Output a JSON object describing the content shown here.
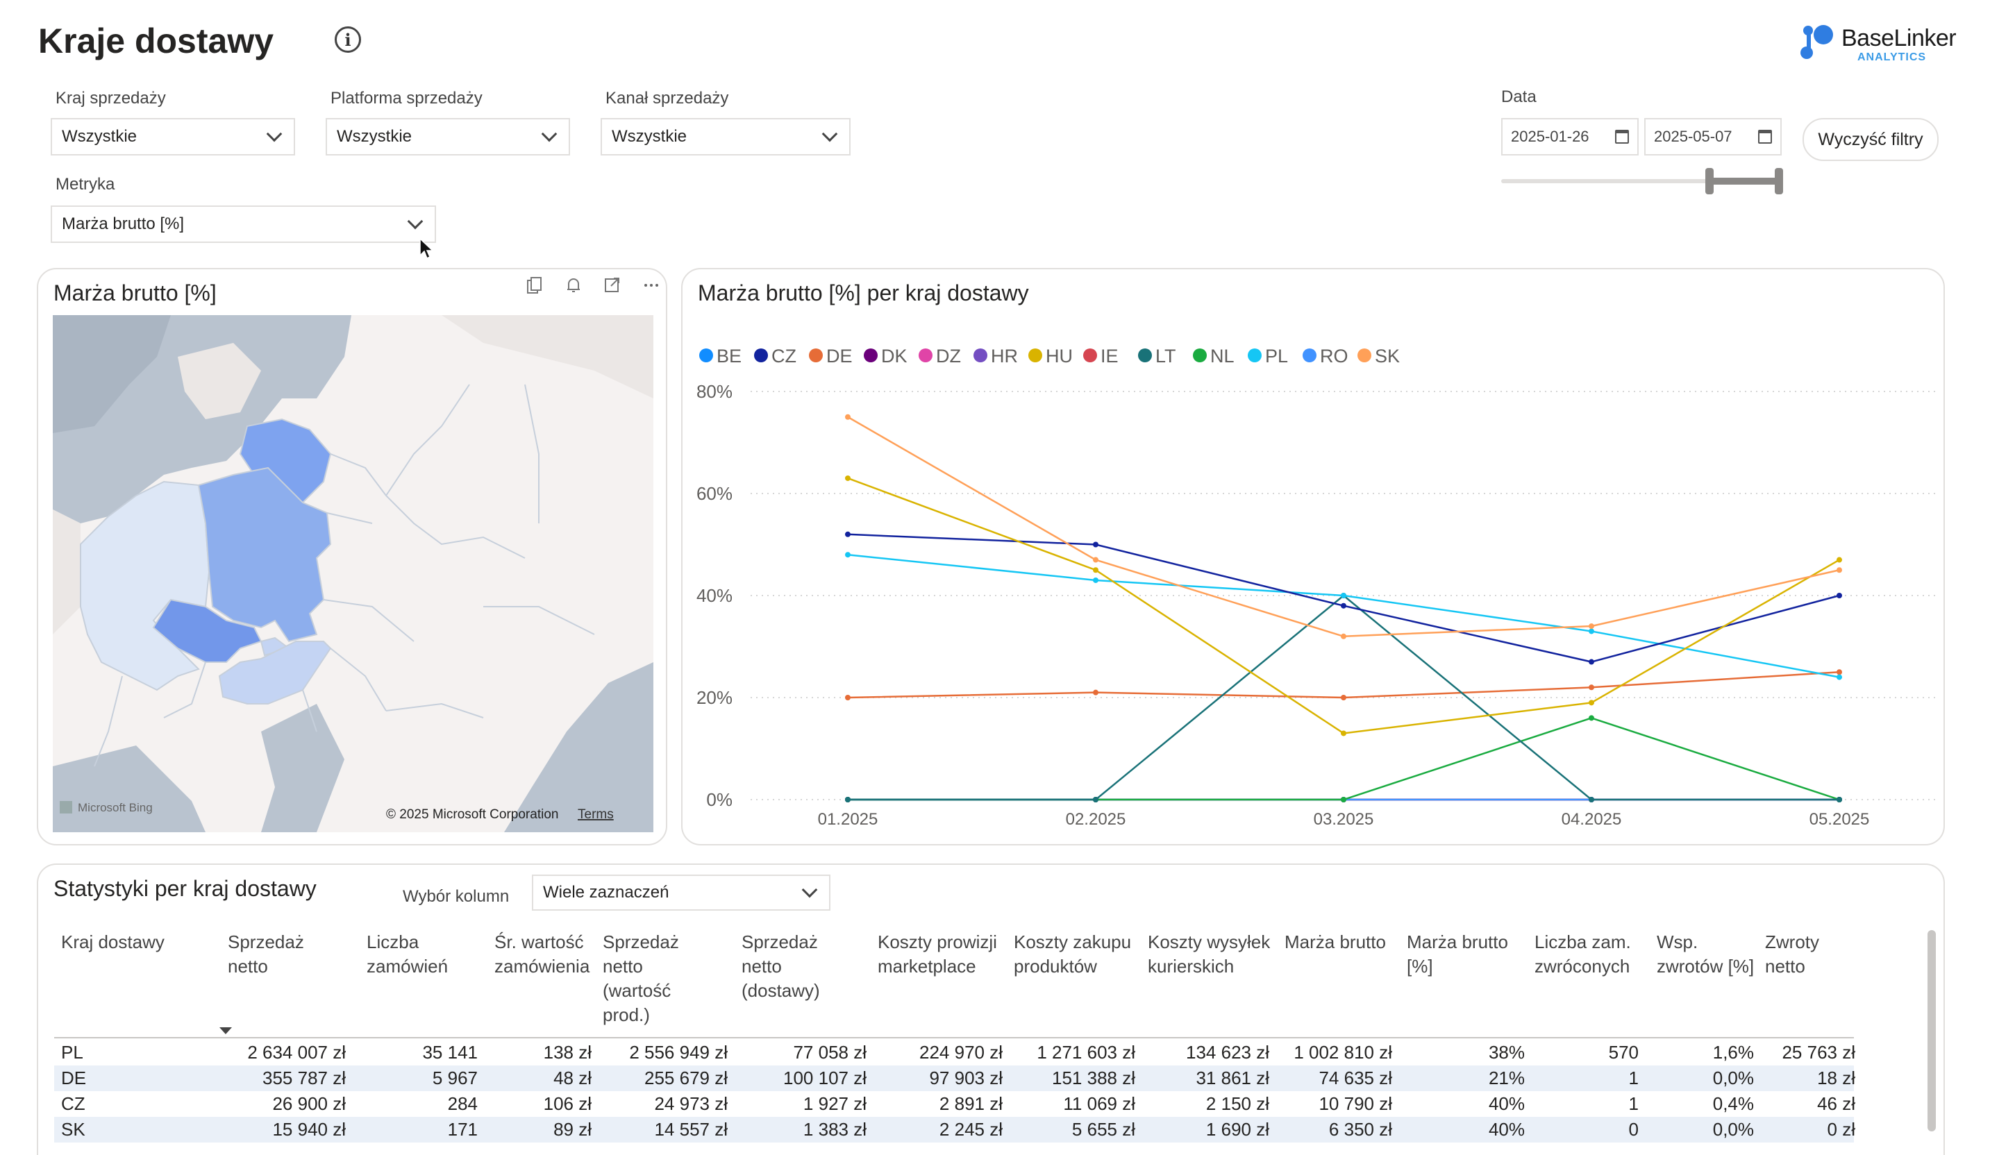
{
  "header": {
    "title": "Kraje dostawy",
    "logo_text": "BaseLinker",
    "logo_sub": "ANALYTICS"
  },
  "filters": {
    "country": {
      "label": "Kraj sprzedaży",
      "value": "Wszystkie"
    },
    "platform": {
      "label": "Platforma sprzedaży",
      "value": "Wszystkie"
    },
    "channel": {
      "label": "Kanał sprzedaży",
      "value": "Wszystkie"
    },
    "metric": {
      "label": "Metryka",
      "value": "Marża brutto [%]"
    },
    "date": {
      "label": "Data",
      "from": "2025-01-26",
      "to": "2025-05-07"
    },
    "clear_label": "Wyczyść filtry"
  },
  "map_card": {
    "title": "Marża brutto [%]",
    "bing_label": "Microsoft Bing",
    "copyright": "© 2025 Microsoft Corporation",
    "terms": "Terms"
  },
  "chart_card": {
    "title": "Marża brutto [%] per kraj dostawy"
  },
  "chart_data": {
    "type": "line",
    "x": [
      "01.2025",
      "02.2025",
      "03.2025",
      "04.2025",
      "05.2025"
    ],
    "ylim": [
      0,
      80
    ],
    "yticks": [
      "0%",
      "20%",
      "40%",
      "60%",
      "80%"
    ],
    "legend_position": "top-left",
    "grid": true,
    "series": [
      {
        "name": "BE",
        "color": "#118dff",
        "values": [
          0,
          0,
          0,
          0,
          0
        ]
      },
      {
        "name": "CZ",
        "color": "#12239e",
        "values": [
          52,
          50,
          38,
          27,
          40
        ]
      },
      {
        "name": "DE",
        "color": "#e66c37",
        "values": [
          20,
          21,
          20,
          22,
          25
        ]
      },
      {
        "name": "DK",
        "color": "#6b007b",
        "values": [
          0,
          0,
          0,
          0,
          0
        ]
      },
      {
        "name": "DZ",
        "color": "#e044a7",
        "values": [
          0,
          0,
          0,
          0,
          0
        ]
      },
      {
        "name": "HR",
        "color": "#744ec2",
        "values": [
          0,
          0,
          0,
          0,
          0
        ]
      },
      {
        "name": "HU",
        "color": "#d9b300",
        "values": [
          63,
          45,
          13,
          19,
          47
        ]
      },
      {
        "name": "IE",
        "color": "#d64550",
        "values": [
          0,
          0,
          0,
          0,
          0
        ]
      },
      {
        "name": "LT",
        "color": "#197278",
        "values": [
          0,
          0,
          40,
          0,
          0
        ]
      },
      {
        "name": "NL",
        "color": "#1aab40",
        "values": [
          0,
          0,
          0,
          16,
          0
        ]
      },
      {
        "name": "PL",
        "color": "#15c6f4",
        "values": [
          48,
          43,
          40,
          33,
          24
        ]
      },
      {
        "name": "RO",
        "color": "#4092ff",
        "values": [
          0,
          0,
          0,
          0,
          0
        ]
      },
      {
        "name": "SK",
        "color": "#ffa058",
        "values": [
          75,
          47,
          32,
          34,
          45
        ]
      }
    ]
  },
  "table_card": {
    "title": "Statystyki per kraj dostawy",
    "column_picker_label": "Wybór kolumn",
    "column_picker_value": "Wiele zaznaczeń",
    "columns": [
      [
        "Kraj dostawy"
      ],
      [
        "Sprzedaż",
        "netto"
      ],
      [
        "Liczba",
        "zamówień"
      ],
      [
        "Śr. wartość",
        "zamówienia"
      ],
      [
        "Sprzedaż",
        "netto",
        "(wartość",
        "prod.)"
      ],
      [
        "Sprzedaż",
        "netto",
        "(dostawy)"
      ],
      [
        "Koszty prowizji",
        "marketplace"
      ],
      [
        "Koszty zakupu",
        "produktów"
      ],
      [
        "Koszty wysyłek",
        "kurierskich"
      ],
      [
        "Marża brutto"
      ],
      [
        "Marża brutto",
        "[%]"
      ],
      [
        "Liczba zam.",
        "zwróconych"
      ],
      [
        "Wsp.",
        "zwrotów [%]"
      ],
      [
        "Zwroty",
        "netto"
      ]
    ],
    "rows": [
      [
        "PL",
        "2 634 007 zł",
        "35 141",
        "138 zł",
        "2 556 949 zł",
        "77 058 zł",
        "224 970 zł",
        "1 271 603 zł",
        "134 623 zł",
        "1 002 810 zł",
        "38%",
        "570",
        "1,6%",
        "25 763 zł"
      ],
      [
        "DE",
        "355 787 zł",
        "5 967",
        "48 zł",
        "255 679 zł",
        "100 107 zł",
        "97 903 zł",
        "151 388 zł",
        "31 861 zł",
        "74 635 zł",
        "21%",
        "1",
        "0,0%",
        "18 zł"
      ],
      [
        "CZ",
        "26 900 zł",
        "284",
        "106 zł",
        "24 973 zł",
        "1 927 zł",
        "2 891 zł",
        "11 069 zł",
        "2 150 zł",
        "10 790 zł",
        "40%",
        "1",
        "0,4%",
        "46 zł"
      ],
      [
        "SK",
        "15 940 zł",
        "171",
        "89 zł",
        "14 557 zł",
        "1 383 zł",
        "2 245 zł",
        "5 655 zł",
        "1 690 zł",
        "6 350 zł",
        "40%",
        "0",
        "0,0%",
        "0 zł"
      ]
    ]
  }
}
